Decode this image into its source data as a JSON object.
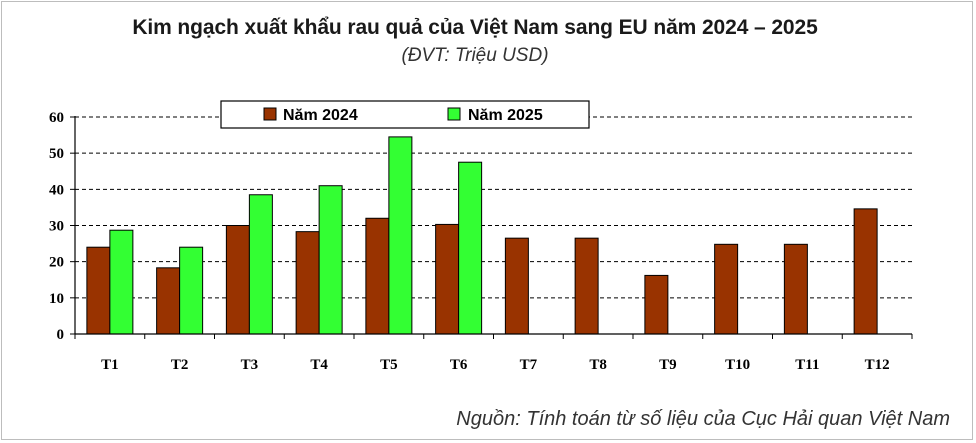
{
  "chart_data": {
    "type": "bar",
    "title": "Kim ngạch xuất khẩu rau quả của Việt Nam sang EU năm 2024 – 2025",
    "subtitle": "(ĐVT: Triệu USD)",
    "source": "Nguồn: Tính toán từ số liệu của Cục Hải quan Việt Nam",
    "categories": [
      "T1",
      "T2",
      "T3",
      "T4",
      "T5",
      "T6",
      "T7",
      "T8",
      "T9",
      "T10",
      "T11",
      "T12"
    ],
    "series": [
      {
        "name": "Năm 2024",
        "color": "#993300",
        "values": [
          24,
          18.3,
          30,
          28.3,
          32,
          30.3,
          26.5,
          26.5,
          16.2,
          24.8,
          24.8,
          34.6
        ]
      },
      {
        "name": "Năm 2025",
        "color": "#33ff33",
        "values": [
          28.7,
          24,
          38.5,
          41,
          54.5,
          47.5,
          null,
          null,
          null,
          null,
          null,
          null
        ]
      }
    ],
    "ylim": [
      0,
      60
    ],
    "yticks": [
      0,
      10,
      20,
      30,
      40,
      50,
      60
    ],
    "xlabel": "",
    "ylabel": "",
    "grid": "dashed horizontal",
    "legend": "top-center"
  }
}
